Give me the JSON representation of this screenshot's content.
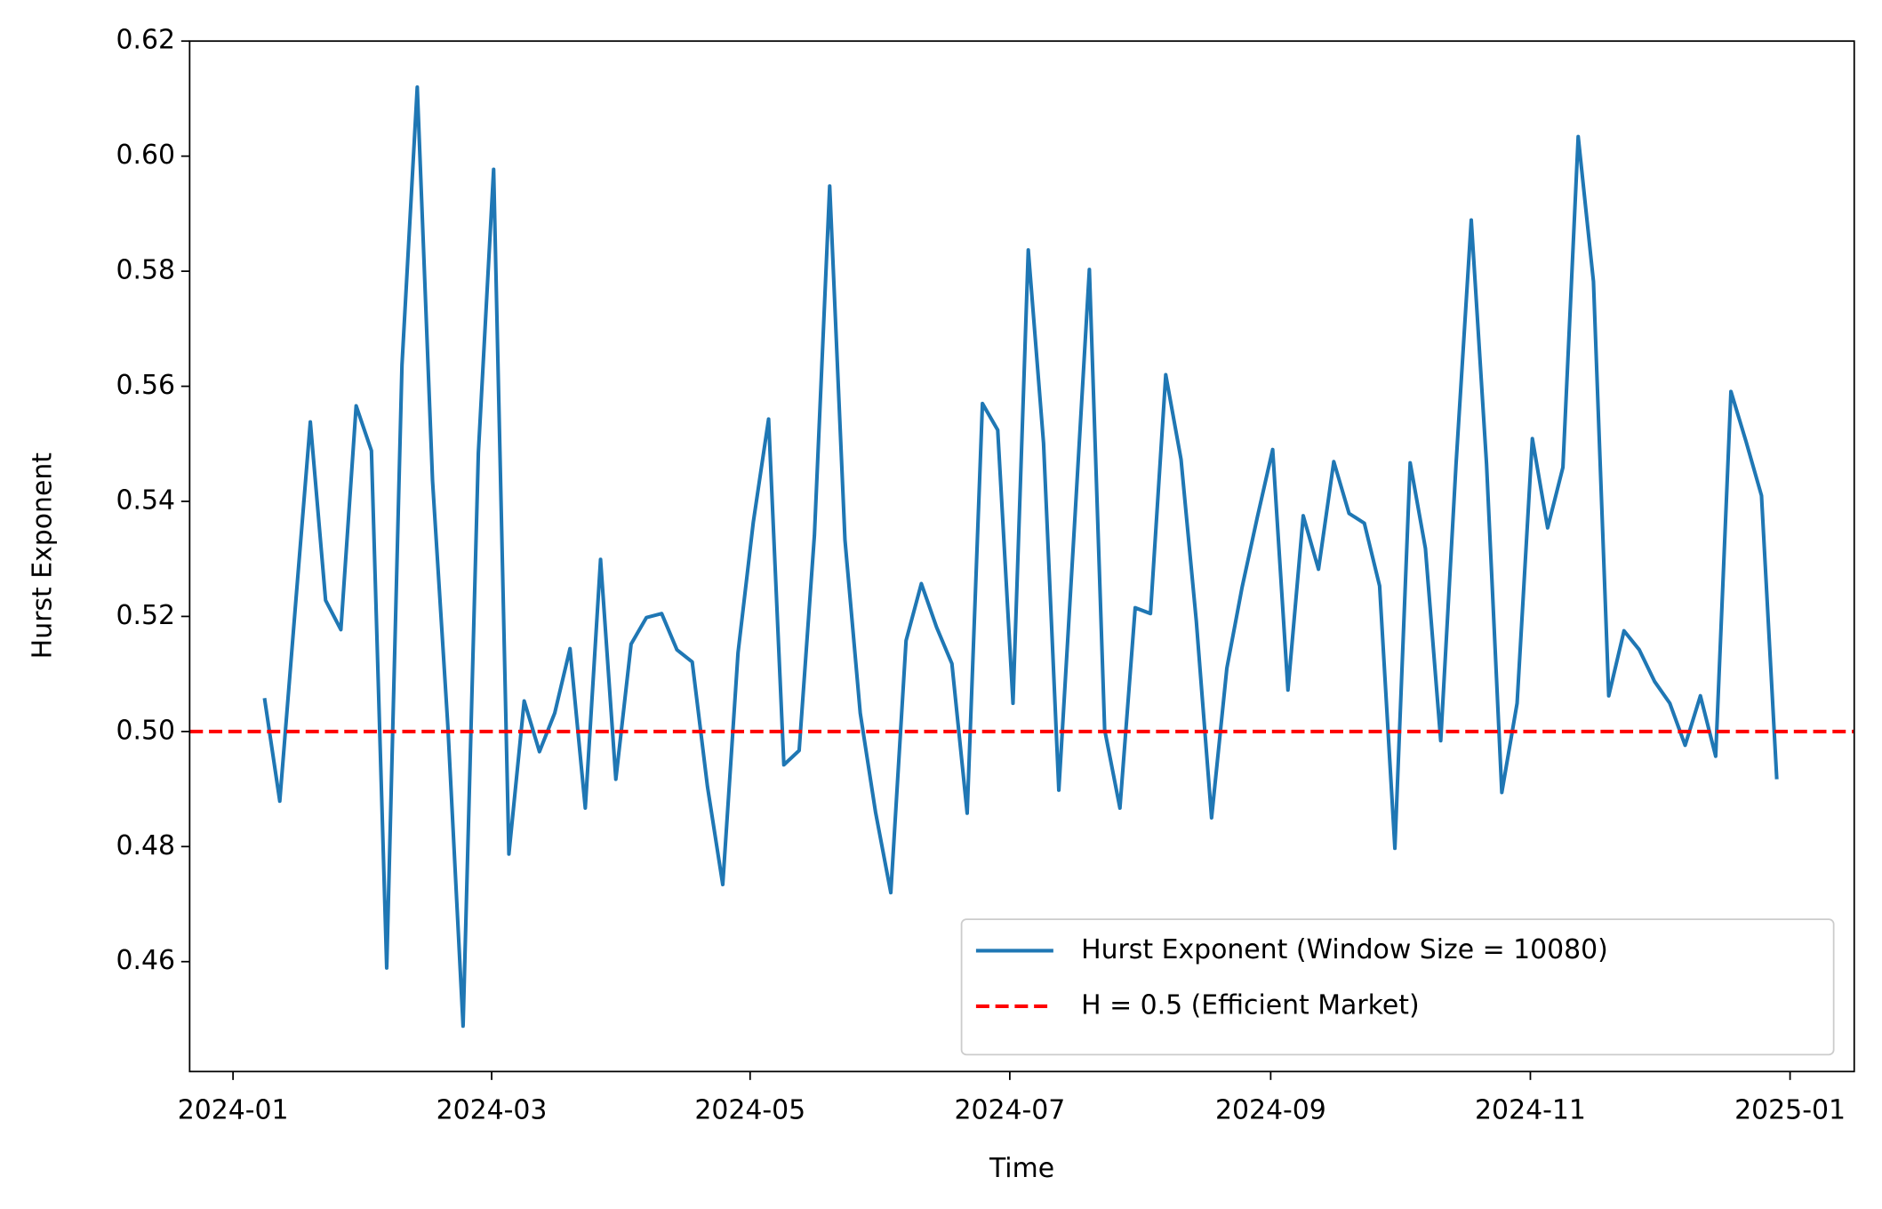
{
  "chart_data": {
    "type": "line",
    "xlabel": "Time",
    "ylabel": "Hurst Exponent",
    "categories": [
      null,
      null,
      null,
      null,
      null,
      null,
      null,
      null,
      null,
      null,
      null,
      null,
      null,
      null,
      null,
      null,
      null,
      null,
      null,
      null,
      null,
      null,
      null,
      null,
      null,
      null,
      null,
      null,
      null,
      null,
      null,
      null,
      null,
      null,
      null,
      null,
      null,
      null,
      null,
      null,
      null,
      null,
      null,
      null,
      null,
      null,
      null,
      null,
      null,
      null,
      null,
      null,
      null,
      null,
      null,
      null,
      null,
      null,
      null,
      null,
      null,
      null,
      null,
      null,
      null,
      null,
      null,
      null,
      null,
      null,
      null,
      null,
      null,
      null,
      null,
      null,
      null,
      null,
      null,
      null,
      null,
      null,
      null,
      null,
      null,
      null,
      null,
      null,
      null,
      null,
      null,
      null,
      null,
      null,
      null,
      null,
      null,
      null,
      null,
      null
    ],
    "series": [
      {
        "name": "Hurst Exponent (Window Size = 10080)",
        "color": "#1f77b4",
        "values": [
          0.5058,
          0.4879,
          0.521,
          0.5538,
          0.5228,
          0.5177,
          0.5566,
          0.5488,
          0.4589,
          0.5637,
          0.612,
          0.5436,
          0.5011,
          0.4488,
          0.5484,
          0.5977,
          0.4787,
          0.5053,
          0.4965,
          0.5032,
          0.5144,
          0.4867,
          0.5299,
          0.4917,
          0.5152,
          0.5198,
          0.5205,
          0.5142,
          0.5121,
          0.4904,
          0.4734,
          0.5137,
          0.5364,
          0.5543,
          0.4942,
          0.4967,
          0.5341,
          0.5948,
          0.5333,
          0.5032,
          0.486,
          0.472,
          0.5158,
          0.5257,
          0.5181,
          0.5118,
          0.4858,
          0.557,
          0.5524,
          0.5049,
          0.5837,
          0.5501,
          0.4898,
          0.5347,
          0.5803,
          0.5003,
          0.4867,
          0.5215,
          0.5205,
          0.562,
          0.5473,
          0.5192,
          0.485,
          0.511,
          0.5251,
          0.5373,
          0.549,
          0.5072,
          0.5375,
          0.5282,
          0.5469,
          0.5379,
          0.5362,
          0.5253,
          0.4797,
          0.5467,
          0.5318,
          0.4984,
          0.5463,
          0.5889,
          0.5465,
          0.4894,
          0.5049,
          0.5509,
          0.5354,
          0.5459,
          0.6034,
          0.5782,
          0.5062,
          0.5175,
          0.5142,
          0.5087,
          0.5049,
          0.4976,
          0.5062,
          0.4957,
          0.5591,
          0.5503,
          0.541,
          0.4917
        ]
      }
    ],
    "reference_lines": [
      {
        "name": "H = 0.5 (Efficient Market)",
        "value": 0.5,
        "color": "#ff0000",
        "style": "dashed"
      }
    ],
    "xlim": [
      -4.9,
      104.07
    ],
    "xticks": [
      {
        "value": -2.06,
        "label": "2024-01"
      },
      {
        "value": 14.87,
        "label": "2024-03"
      },
      {
        "value": 31.79,
        "label": "2024-05"
      },
      {
        "value": 48.79,
        "label": "2024-07"
      },
      {
        "value": 65.87,
        "label": "2024-09"
      },
      {
        "value": 82.87,
        "label": "2024-11"
      },
      {
        "value": 99.87,
        "label": "2025-01"
      }
    ],
    "ylim": [
      0.4409,
      0.62
    ],
    "yticks": [
      0.46,
      0.48,
      {
        "value": 0.5,
        "label": "0.50"
      },
      0.52,
      0.54,
      0.56,
      0.58,
      {
        "value": 0.6,
        "label": "0.60"
      },
      0.62
    ],
    "grid": false,
    "legend": "lower right"
  }
}
